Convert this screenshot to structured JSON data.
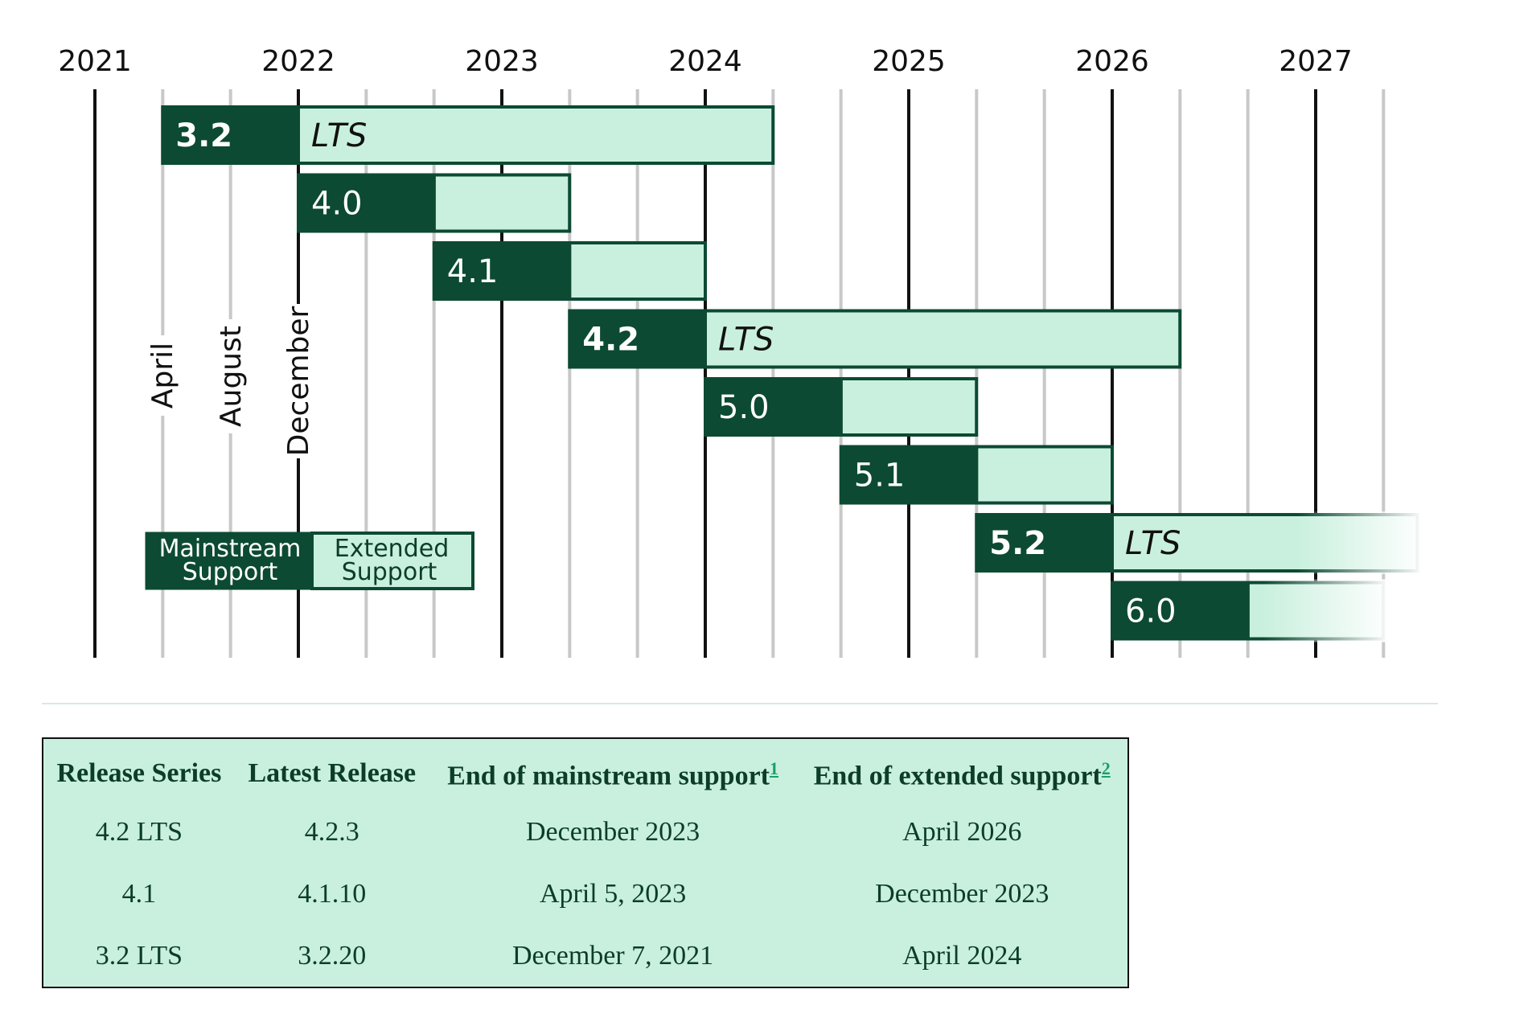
{
  "chart_data": {
    "type": "gantt",
    "x_unit": "year",
    "xlim": [
      2021.0,
      2027.5
    ],
    "years": [
      2021,
      2022,
      2023,
      2024,
      2025,
      2026,
      2027
    ],
    "month_guides": [
      {
        "label": "April",
        "value": 2021.333
      },
      {
        "label": "August",
        "value": 2021.667
      },
      {
        "label": "December",
        "value": 2022.0
      }
    ],
    "releases": [
      {
        "label": "3.2",
        "bold": true,
        "start": 2021.333,
        "mainstream_end": 2022.0,
        "extended_end": 2024.333,
        "lts": "LTS",
        "fade": false
      },
      {
        "label": "4.0",
        "bold": false,
        "start": 2022.0,
        "mainstream_end": 2022.667,
        "extended_end": 2023.333,
        "lts": "",
        "fade": false
      },
      {
        "label": "4.1",
        "bold": false,
        "start": 2022.667,
        "mainstream_end": 2023.333,
        "extended_end": 2024.0,
        "lts": "",
        "fade": false
      },
      {
        "label": "4.2",
        "bold": true,
        "start": 2023.333,
        "mainstream_end": 2024.0,
        "extended_end": 2026.333,
        "lts": "LTS",
        "fade": false
      },
      {
        "label": "5.0",
        "bold": false,
        "start": 2024.0,
        "mainstream_end": 2024.667,
        "extended_end": 2025.333,
        "lts": "",
        "fade": false
      },
      {
        "label": "5.1",
        "bold": false,
        "start": 2024.667,
        "mainstream_end": 2025.333,
        "extended_end": 2026.0,
        "lts": "",
        "fade": false
      },
      {
        "label": "5.2",
        "bold": true,
        "start": 2025.333,
        "mainstream_end": 2026.0,
        "extended_end": 2027.5,
        "lts": "LTS",
        "fade": true
      },
      {
        "label": "6.0",
        "bold": false,
        "start": 2026.0,
        "mainstream_end": 2026.667,
        "extended_end": 2027.333,
        "lts": "",
        "fade": true
      }
    ],
    "legend": {
      "mainstream": [
        "Mainstream",
        "Support"
      ],
      "extended": [
        "Extended",
        "Support"
      ]
    },
    "colors": {
      "mainstream": "#0c4a33",
      "extended": "#c9f0de",
      "major_grid": "#111111",
      "minor_grid": "#c8c8c8"
    }
  },
  "table": {
    "headers": {
      "series": "Release Series",
      "latest": "Latest Release",
      "mainstream": "End of mainstream support",
      "mainstream_note": "1",
      "extended": "End of extended support",
      "extended_note": "2"
    },
    "rows": [
      {
        "series": "4.2 LTS",
        "latest": "4.2.3",
        "mainstream": "December 2023",
        "extended": "April 2026"
      },
      {
        "series": "4.1",
        "latest": "4.1.10",
        "mainstream": "April 5, 2023",
        "extended": "December 2023"
      },
      {
        "series": "3.2 LTS",
        "latest": "3.2.20",
        "mainstream": "December 7, 2021",
        "extended": "April 2024"
      }
    ]
  }
}
